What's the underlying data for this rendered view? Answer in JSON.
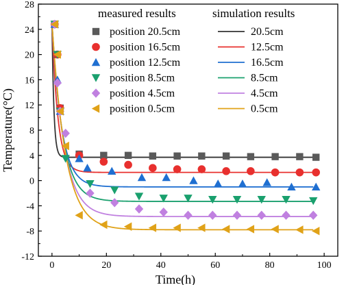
{
  "chart_data": {
    "type": "scatter",
    "xlabel": "Time(h)",
    "ylabel": "Temperature(°C)",
    "xlim": [
      -5,
      105
    ],
    "ylim": [
      -12,
      28
    ],
    "x_ticks": [
      0,
      20,
      40,
      60,
      80,
      100
    ],
    "y_ticks": [
      -12,
      -8,
      -4,
      0,
      4,
      8,
      12,
      16,
      20,
      24,
      28
    ],
    "grid": false,
    "legend_placement": "top-right",
    "legend_headers": {
      "measured": "measured results",
      "simulation": "simulation results"
    },
    "measured": [
      {
        "name": "position 20.5cm",
        "marker": "square",
        "color": "#5a5a5a",
        "x": [
          1,
          2,
          3,
          10,
          19,
          28,
          37,
          46,
          55,
          64,
          73,
          82,
          91,
          97
        ],
        "y": [
          24.8,
          20.0,
          11.5,
          4.2,
          4.0,
          4.0,
          3.9,
          3.9,
          3.9,
          3.9,
          3.8,
          3.8,
          3.8,
          3.7
        ]
      },
      {
        "name": "position 16.5cm",
        "marker": "circle",
        "color": "#e8302e",
        "x": [
          1,
          2,
          3,
          10,
          19,
          28,
          37,
          46,
          55,
          64,
          73,
          82,
          91,
          97
        ],
        "y": [
          24.8,
          20.0,
          11.5,
          4.0,
          3.0,
          2.5,
          2.0,
          1.8,
          1.8,
          1.5,
          1.5,
          1.3,
          1.3,
          1.3
        ]
      },
      {
        "name": "position 12.5cm",
        "marker": "triangle-up",
        "color": "#1f6fd1",
        "x": [
          1,
          2,
          3,
          10,
          13,
          22,
          33,
          42,
          52,
          61,
          70,
          79,
          88,
          97
        ],
        "y": [
          24.8,
          16.0,
          11.0,
          3.5,
          2.0,
          1.5,
          0.5,
          0.5,
          0.0,
          -0.5,
          -0.5,
          -0.3,
          -1.0,
          -1.0
        ]
      },
      {
        "name": "position 8.5cm",
        "marker": "triangle-down",
        "color": "#1aa06e",
        "x": [
          1,
          2,
          3,
          5,
          14,
          23,
          32,
          41,
          50,
          59,
          68,
          77,
          86,
          96
        ],
        "y": [
          24.8,
          20.0,
          11.0,
          3.5,
          -0.5,
          -1.5,
          -2.5,
          -2.8,
          -2.8,
          -3.0,
          -3.0,
          -3.0,
          -3.0,
          -3.2
        ]
      },
      {
        "name": "position 4.5cm",
        "marker": "diamond",
        "color": "#c080e0",
        "x": [
          1,
          2,
          3,
          5,
          14,
          23,
          32,
          41,
          50,
          59,
          68,
          77,
          86,
          96
        ],
        "y": [
          24.8,
          15.5,
          11.0,
          7.5,
          -2.0,
          -3.5,
          -4.5,
          -5.0,
          -5.5,
          -5.5,
          -5.5,
          -5.5,
          -5.5,
          -5.5
        ]
      },
      {
        "name": "position 0.5cm",
        "marker": "triangle-left",
        "color": "#e0a218",
        "x": [
          1,
          2,
          3,
          5,
          10,
          19,
          28,
          37,
          46,
          55,
          64,
          73,
          82,
          91,
          97
        ],
        "y": [
          24.8,
          20.0,
          11.0,
          5.5,
          -5.5,
          -7.0,
          -7.3,
          -7.5,
          -7.5,
          -7.5,
          -7.7,
          -7.7,
          -7.7,
          -7.8,
          -8.0
        ]
      }
    ],
    "simulation": [
      {
        "name": "20.5cm",
        "color": "#333333",
        "final": 3.7,
        "tau": 0.7
      },
      {
        "name": "12.5cm",
        "color": "#e8302e",
        "final": 1.3,
        "tau": 2.2
      },
      {
        "name": "16.5cm",
        "color": "#1f6fd1",
        "final": -1.0,
        "tau": 3.5
      },
      {
        "name": "8.5cm",
        "color": "#1aa06e",
        "final": -3.3,
        "tau": 4.0
      },
      {
        "name": "4.5cm",
        "color": "#c080e0",
        "final": -5.7,
        "tau": 4.5
      },
      {
        "name": "0.5cm",
        "color": "#e0a218",
        "final": -7.8,
        "tau": 5.0
      }
    ]
  }
}
